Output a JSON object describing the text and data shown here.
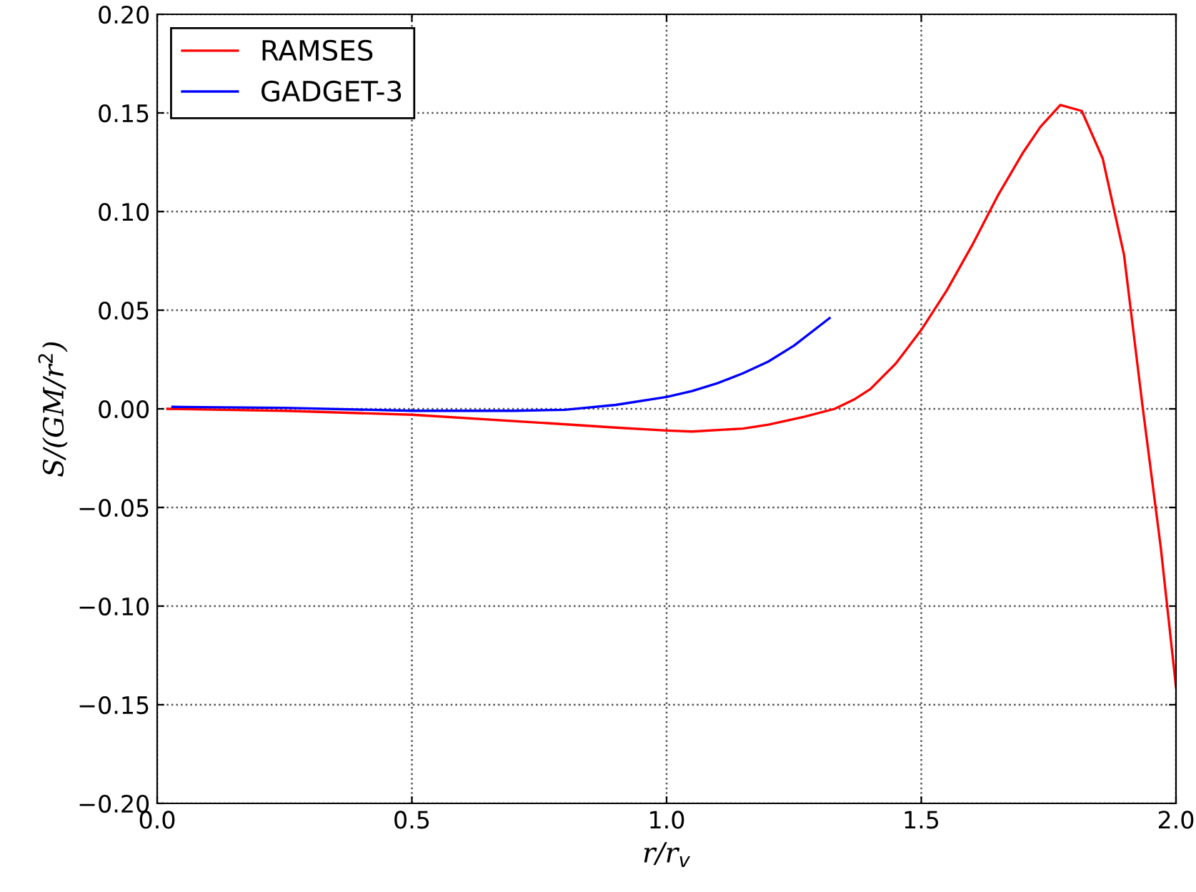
{
  "chart_data": {
    "type": "line",
    "xlabel": "r/r$_{v}$",
    "ylabel": "S/(GM/r$^{2}$)",
    "xlim": [
      0.0,
      2.0
    ],
    "ylim": [
      -0.2,
      0.2
    ],
    "xticks": [
      {
        "value": 0,
        "label": "0.0"
      },
      0.5,
      {
        "value": 1,
        "label": "1.0"
      },
      1.5,
      {
        "value": 2,
        "label": "2.0"
      }
    ],
    "yticks": [
      {
        "value": -0.2,
        "label": "−0.20"
      },
      {
        "value": -0.15,
        "label": "−0.15"
      },
      {
        "value": -0.1,
        "label": "−0.10"
      },
      {
        "value": -0.05,
        "label": "−0.05"
      },
      {
        "value": 0,
        "label": "0.00"
      },
      {
        "value": 0.05,
        "label": "0.05"
      },
      {
        "value": 0.1,
        "label": "0.10"
      },
      {
        "value": 0.15,
        "label": "0.15"
      },
      {
        "value": 0.2,
        "label": "0.20"
      }
    ],
    "grid": true,
    "legend": "top left",
    "marker": "none",
    "line_style": "solid",
    "series": [
      {
        "name": "RAMSES",
        "color": "#ff0000",
        "x": [
          0.02,
          0.25,
          0.5,
          0.75,
          0.9,
          1.0,
          1.05,
          1.15,
          1.2,
          1.27,
          1.33,
          1.37,
          1.4,
          1.45,
          1.5,
          1.55,
          1.6,
          1.65,
          1.7,
          1.734,
          1.773,
          1.815,
          1.856,
          1.898,
          1.935,
          1.97,
          2.0
        ],
        "values": [
          0.0,
          -0.001,
          -0.003,
          -0.007,
          -0.0095,
          -0.011,
          -0.0115,
          -0.01,
          -0.008,
          -0.004,
          0.0,
          0.005,
          0.01,
          0.023,
          0.04,
          0.06,
          0.083,
          0.108,
          0.13,
          0.143,
          0.154,
          0.151,
          0.127,
          0.078,
          0.0,
          -0.07,
          -0.141
        ]
      },
      {
        "name": "GADGET-3",
        "color": "#0000ff",
        "x": [
          0.03,
          0.25,
          0.5,
          0.7,
          0.8,
          0.9,
          1.0,
          1.05,
          1.1,
          1.15,
          1.2,
          1.25,
          1.32
        ],
        "values": [
          0.001,
          0.0005,
          -0.001,
          -0.001,
          -0.0005,
          0.002,
          0.006,
          0.009,
          0.013,
          0.018,
          0.024,
          0.032,
          0.046
        ]
      }
    ]
  }
}
